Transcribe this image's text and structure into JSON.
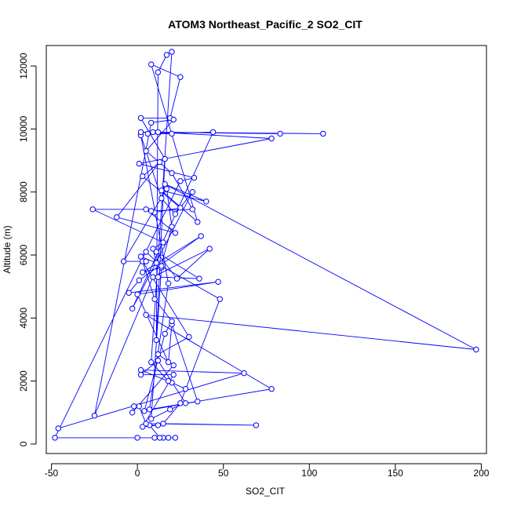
{
  "chart_data": {
    "type": "line",
    "title": "ATOM3 Northeast_Pacific_2 SO2_CIT",
    "xlabel": "SO2_CIT",
    "ylabel": "Altitude (m)",
    "xlim": [
      -53,
      203
    ],
    "ylim": [
      -300,
      12650
    ],
    "xticks": [
      -50,
      0,
      50,
      100,
      150,
      200
    ],
    "yticks": [
      0,
      2000,
      4000,
      6000,
      8000,
      10000,
      12000
    ],
    "grid": false,
    "legend": "none",
    "colors": {
      "series": "#0000ff",
      "axis": "#000000"
    },
    "series": [
      {
        "marker": "open-circle",
        "x": [
          -46,
          62,
          2,
          20,
          28,
          18,
          8,
          20,
          17,
          12,
          11,
          16,
          2,
          19,
          25,
          8,
          35,
          14,
          40,
          16,
          197,
          5,
          78,
          7,
          18,
          2,
          14,
          22,
          32,
          -3,
          44,
          6,
          20,
          2,
          108,
          9,
          83,
          12,
          78,
          1,
          33,
          25,
          -48,
          0,
          10,
          22,
          18,
          15,
          13,
          7,
          12,
          3,
          21,
          2,
          12,
          28,
          19,
          8,
          14,
          3,
          37,
          1,
          -5,
          47,
          0,
          18,
          20,
          35,
          4,
          16,
          20,
          10,
          3,
          30,
          12,
          21,
          -3,
          -2,
          1,
          5,
          69,
          15,
          25,
          48,
          14,
          5,
          2,
          11,
          9,
          15,
          -26,
          5,
          22,
          -12,
          13,
          3,
          25,
          10,
          8,
          32,
          20,
          5,
          21,
          8,
          -25,
          9,
          42,
          23,
          11,
          36,
          12,
          20,
          17,
          -8,
          5
        ],
        "y": [
          500,
          2250,
          2350,
          1950,
          1750,
          2000,
          2600,
          12450,
          12350,
          11800,
          3300,
          9050,
          10350,
          10350,
          11650,
          12050,
          7050,
          8050,
          7700,
          8250,
          3000,
          4100,
          1750,
          1100,
          5100,
          9800,
          7800,
          7300,
          8000,
          4300,
          9900,
          9850,
          9850,
          9900,
          9850,
          9900,
          9850,
          9900,
          9700,
          8900,
          8450,
          8350,
          200,
          200,
          200,
          200,
          200,
          200,
          200,
          600,
          600,
          550,
          2200,
          2200,
          2650,
          1300,
          1100,
          800,
          5600,
          5450,
          6600,
          5200,
          4800,
          5150,
          4750,
          2600,
          3800,
          1350,
          1050,
          3500,
          3900,
          4600,
          5800,
          3400,
          2850,
          2500,
          1000,
          1200,
          1200,
          650,
          600,
          650,
          1300,
          4600,
          5650,
          6100,
          5950,
          5750,
          6200,
          6400,
          7450,
          7450,
          6700,
          7200,
          8950,
          8500,
          7500,
          7350,
          7400,
          7450,
          8600,
          9300,
          10300,
          10200,
          900,
          5300,
          6200,
          5250,
          6100,
          5250,
          5300,
          6900,
          8100,
          5800,
          5800
        ]
      }
    ]
  }
}
